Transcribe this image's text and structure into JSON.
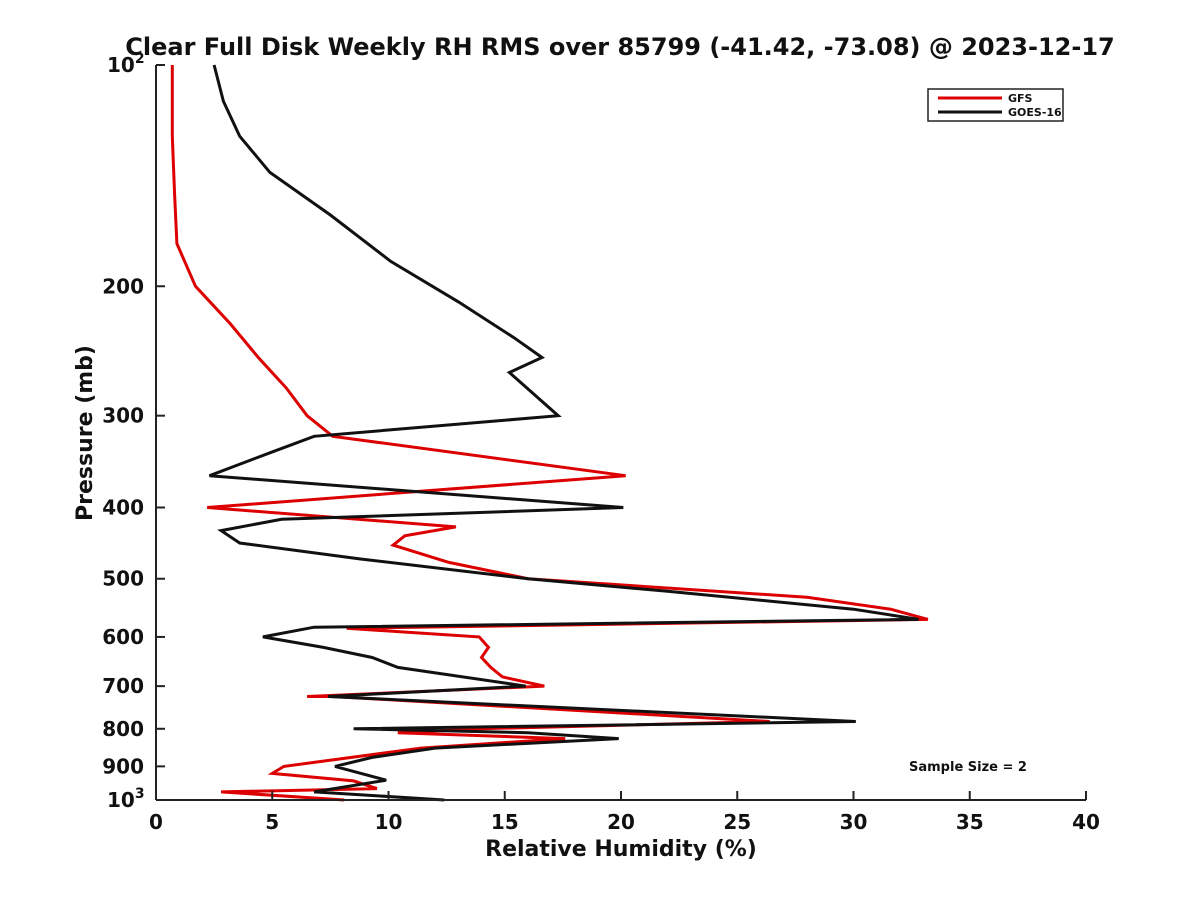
{
  "chart_data": {
    "type": "line",
    "title": "Clear Full Disk Weekly RH RMS over 85799 (-41.42, -73.08) @ 2023-12-17",
    "xlabel": "Relative Humidity (%)",
    "ylabel": "Pressure (mb)",
    "xlim": [
      0,
      40
    ],
    "ylim": [
      100,
      1000
    ],
    "y_scale": "log",
    "y_reversed": true,
    "x_ticks": [
      0,
      5,
      10,
      15,
      20,
      25,
      30,
      35,
      40
    ],
    "x_tick_labels": [
      "0",
      "5",
      "10",
      "15",
      "20",
      "25",
      "30",
      "35",
      "40"
    ],
    "y_ticks": [
      100,
      200,
      300,
      400,
      500,
      600,
      700,
      800,
      900,
      1000
    ],
    "y_tick_labels": [
      {
        "base": "10",
        "exp": "2"
      },
      {
        "base": "200",
        "exp": ""
      },
      {
        "base": "300",
        "exp": ""
      },
      {
        "base": "400",
        "exp": ""
      },
      {
        "base": "500",
        "exp": ""
      },
      {
        "base": "600",
        "exp": ""
      },
      {
        "base": "700",
        "exp": ""
      },
      {
        "base": "800",
        "exp": ""
      },
      {
        "base": "900",
        "exp": ""
      },
      {
        "base": "10",
        "exp": "3"
      }
    ],
    "grid": false,
    "legend_position": "top-right",
    "annotation": "Sample Size = 2",
    "series": [
      {
        "name": "GFS",
        "color": "#dd0000",
        "points": [
          [
            0.7,
            100
          ],
          [
            0.7,
            125
          ],
          [
            0.8,
            150
          ],
          [
            0.9,
            175
          ],
          [
            1.7,
            200
          ],
          [
            3.2,
            225
          ],
          [
            4.4,
            250
          ],
          [
            5.6,
            275
          ],
          [
            6.5,
            300
          ],
          [
            7.6,
            320
          ],
          [
            20.2,
            362
          ],
          [
            2.2,
            400
          ],
          [
            12.9,
            425
          ],
          [
            10.7,
            437
          ],
          [
            10.2,
            450
          ],
          [
            12.6,
            475
          ],
          [
            16.0,
            500
          ],
          [
            28.0,
            530
          ],
          [
            31.6,
            550
          ],
          [
            33.2,
            568
          ],
          [
            8.2,
            584
          ],
          [
            13.9,
            600
          ],
          [
            14.3,
            620
          ],
          [
            14.0,
            640
          ],
          [
            14.4,
            660
          ],
          [
            14.9,
            680
          ],
          [
            16.7,
            700
          ],
          [
            6.5,
            723
          ],
          [
            7.6,
            723
          ],
          [
            26.4,
            782
          ],
          [
            13.9,
            800
          ],
          [
            10.4,
            810
          ],
          [
            17.6,
            825
          ],
          [
            11.4,
            850
          ],
          [
            5.5,
            900
          ],
          [
            5.0,
            920
          ],
          [
            8.5,
            942
          ],
          [
            9.5,
            965
          ],
          [
            2.8,
            975
          ],
          [
            8.1,
            1000
          ]
        ]
      },
      {
        "name": "GOES-16",
        "color": "#111111",
        "points": [
          [
            2.5,
            100
          ],
          [
            2.9,
            112
          ],
          [
            3.6,
            125
          ],
          [
            4.9,
            140
          ],
          [
            7.5,
            160
          ],
          [
            10.1,
            185
          ],
          [
            13.0,
            210
          ],
          [
            15.4,
            235
          ],
          [
            16.6,
            250
          ],
          [
            15.2,
            262
          ],
          [
            17.3,
            300
          ],
          [
            6.8,
            320
          ],
          [
            4.9,
            337
          ],
          [
            2.3,
            362
          ],
          [
            20.1,
            400
          ],
          [
            5.4,
            415
          ],
          [
            2.8,
            430
          ],
          [
            3.6,
            447
          ],
          [
            8.8,
            470
          ],
          [
            16.0,
            500
          ],
          [
            22.0,
            520
          ],
          [
            30.0,
            550
          ],
          [
            32.8,
            568
          ],
          [
            6.8,
            582
          ],
          [
            4.6,
            600
          ],
          [
            7.2,
            620
          ],
          [
            9.3,
            640
          ],
          [
            10.4,
            660
          ],
          [
            15.9,
            700
          ],
          [
            7.4,
            723
          ],
          [
            30.1,
            782
          ],
          [
            8.5,
            800
          ],
          [
            16.0,
            810
          ],
          [
            19.9,
            825
          ],
          [
            12.0,
            850
          ],
          [
            9.3,
            875
          ],
          [
            7.7,
            900
          ],
          [
            9.9,
            940
          ],
          [
            6.8,
            975
          ],
          [
            12.4,
            1000
          ]
        ]
      }
    ]
  }
}
